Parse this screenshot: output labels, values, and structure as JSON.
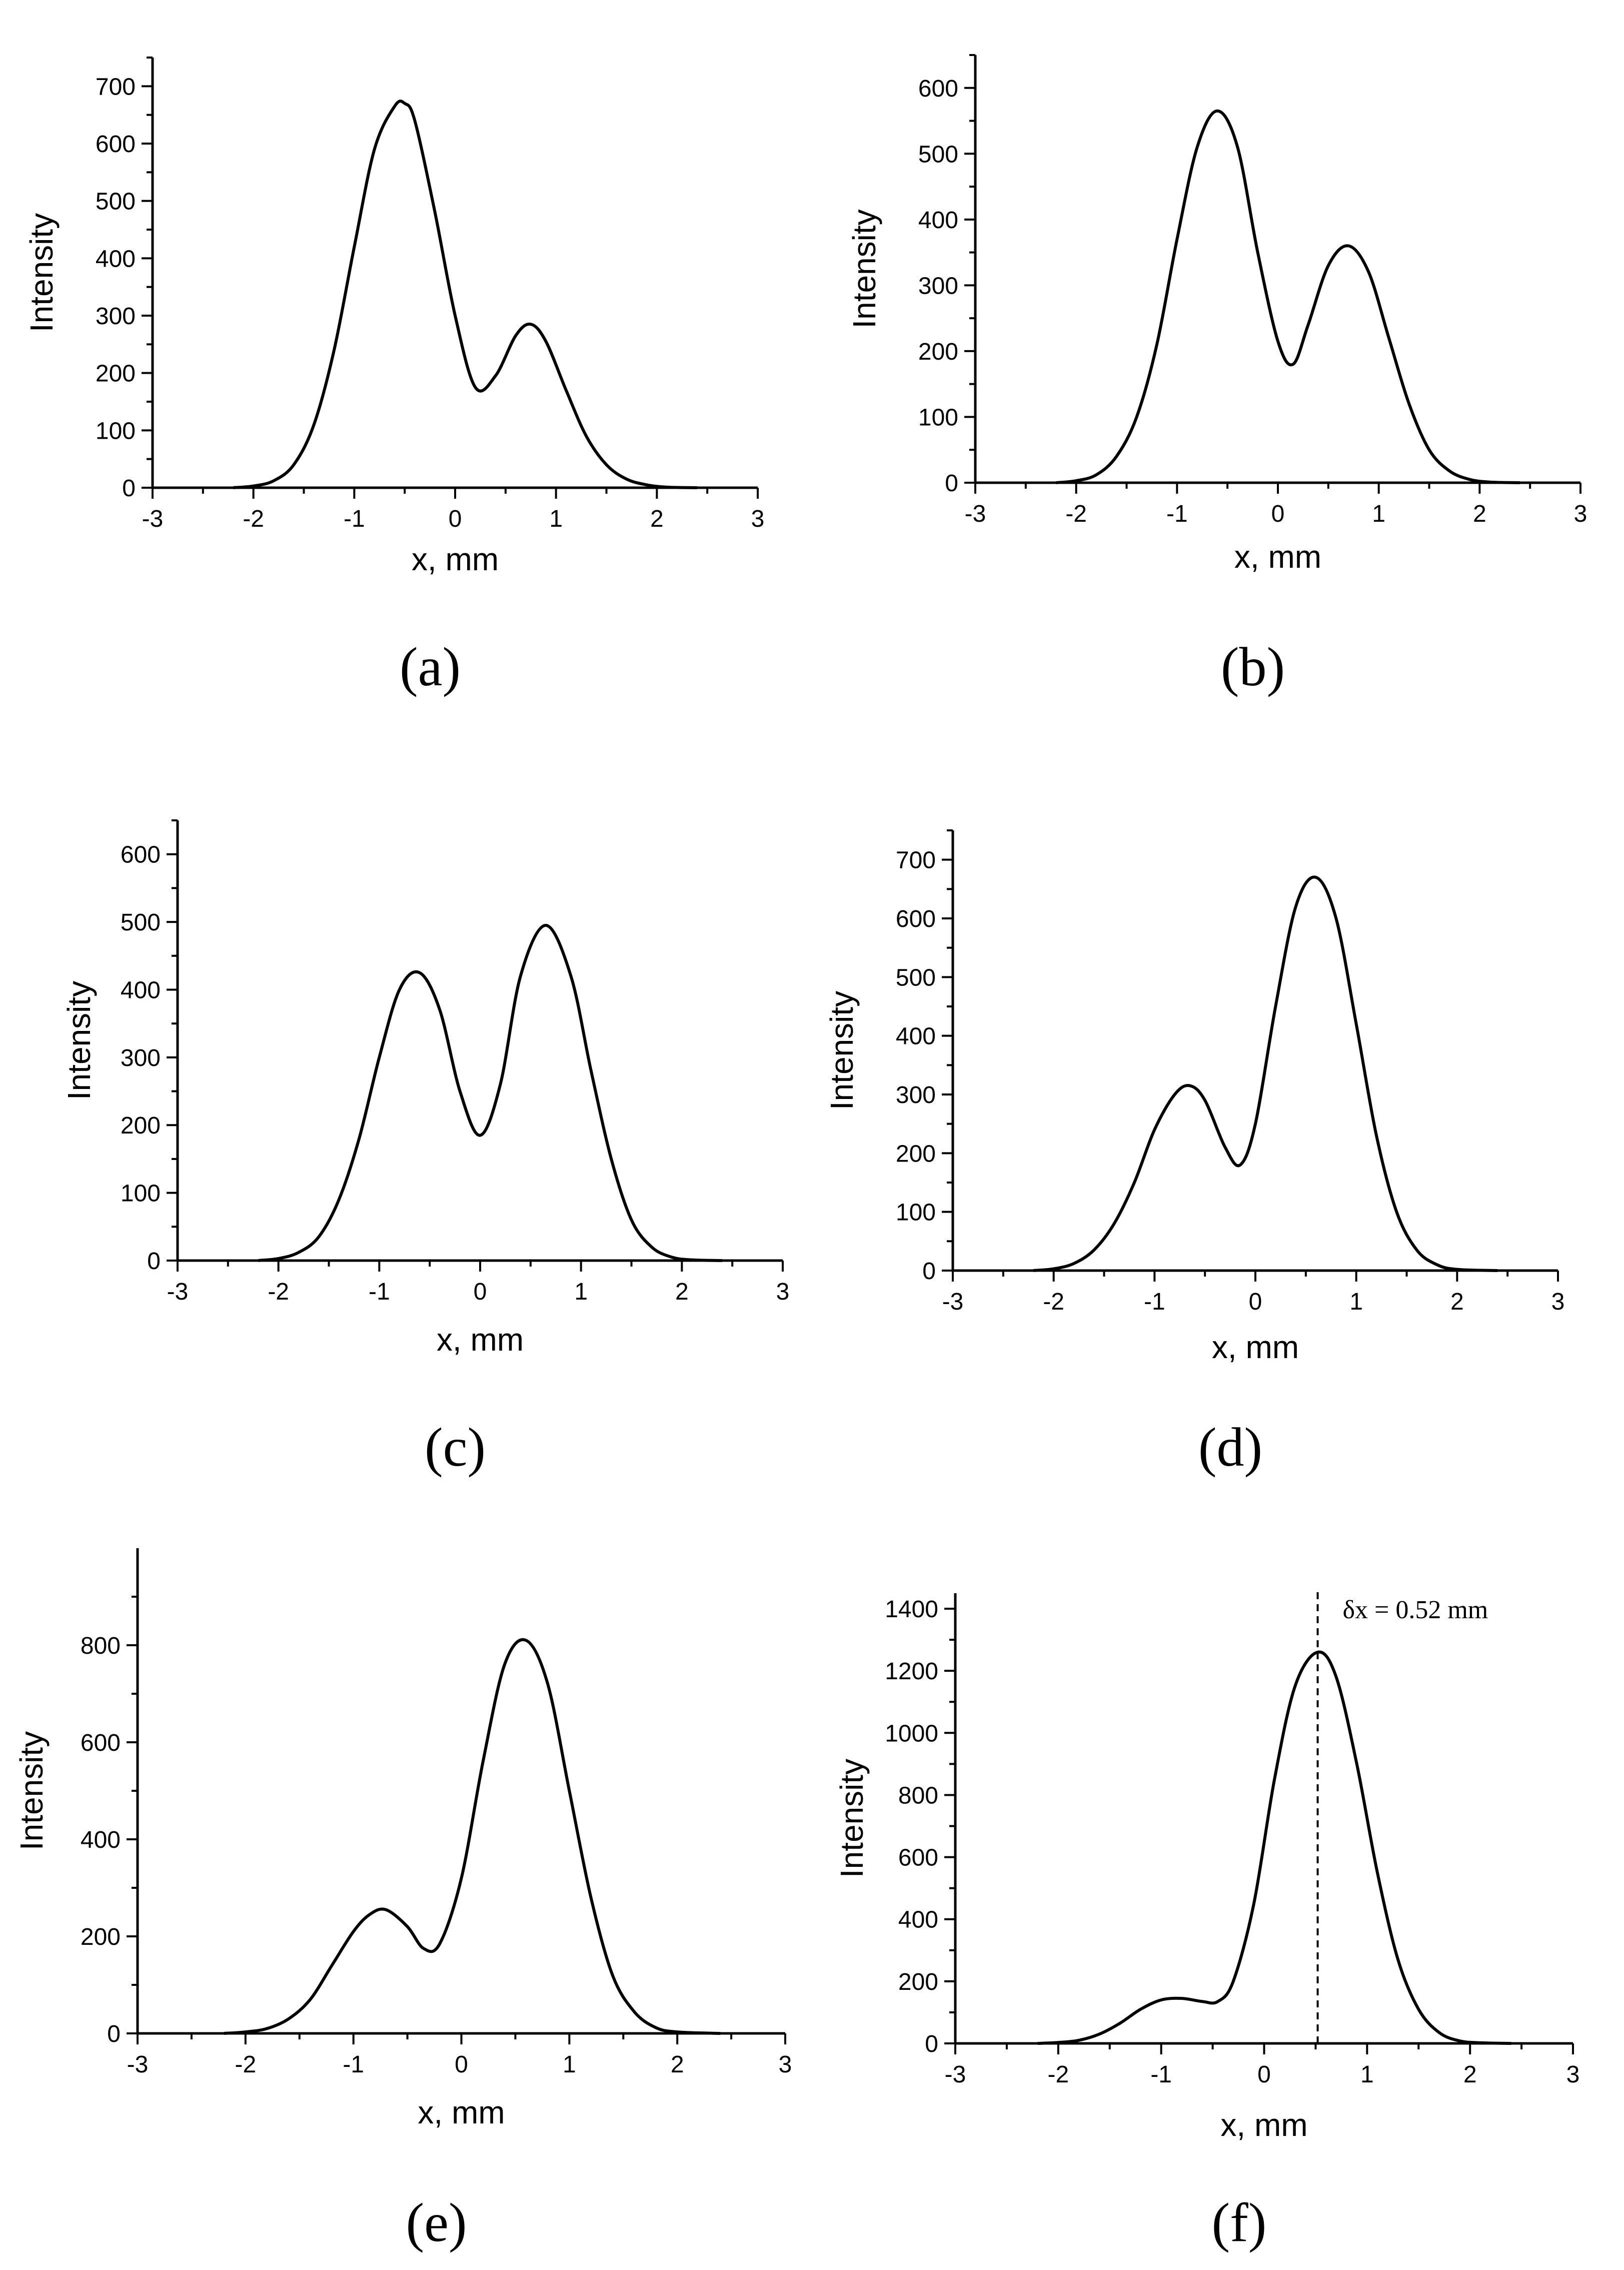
{
  "chart_data": [
    {
      "type": "line",
      "label": "(a)",
      "xlabel": "x, mm",
      "ylabel": "Intensity",
      "xlim": [
        -3,
        3
      ],
      "ylim": [
        0,
        750
      ],
      "xticks": [
        -3,
        -2,
        -1,
        0,
        1,
        2,
        3
      ],
      "yticks": [
        0,
        100,
        200,
        300,
        400,
        500,
        600,
        700
      ],
      "x": [
        -2.2,
        -2.0,
        -1.8,
        -1.6,
        -1.4,
        -1.2,
        -1.0,
        -0.8,
        -0.6,
        -0.5,
        -0.4,
        -0.2,
        0.0,
        0.2,
        0.4,
        0.6,
        0.75,
        0.9,
        1.1,
        1.3,
        1.5,
        1.7,
        1.9,
        2.1,
        2.4
      ],
      "y": [
        0,
        3,
        12,
        40,
        110,
        240,
        420,
        590,
        665,
        670,
        640,
        480,
        300,
        175,
        195,
        265,
        285,
        255,
        170,
        90,
        40,
        15,
        5,
        1,
        0
      ]
    },
    {
      "type": "line",
      "label": "(b)",
      "xlabel": "x, mm",
      "ylabel": "Intensity",
      "xlim": [
        -3,
        3
      ],
      "ylim": [
        0,
        650
      ],
      "xticks": [
        -3,
        -2,
        -1,
        0,
        1,
        2,
        3
      ],
      "yticks": [
        0,
        100,
        200,
        300,
        400,
        500,
        600
      ],
      "x": [
        -2.2,
        -2.0,
        -1.8,
        -1.6,
        -1.4,
        -1.2,
        -1.0,
        -0.8,
        -0.6,
        -0.4,
        -0.2,
        0.0,
        0.15,
        0.3,
        0.5,
        0.7,
        0.9,
        1.1,
        1.3,
        1.5,
        1.7,
        1.9,
        2.1,
        2.4
      ],
      "y": [
        0,
        3,
        12,
        40,
        100,
        210,
        370,
        510,
        565,
        510,
        350,
        215,
        180,
        240,
        330,
        360,
        320,
        220,
        120,
        50,
        18,
        5,
        1,
        0
      ]
    },
    {
      "type": "line",
      "label": "(c)",
      "xlabel": "x, mm",
      "ylabel": "Intensity",
      "xlim": [
        -3,
        3
      ],
      "ylim": [
        0,
        650
      ],
      "xticks": [
        -3,
        -2,
        -1,
        0,
        1,
        2,
        3
      ],
      "yticks": [
        0,
        100,
        200,
        300,
        400,
        500,
        600
      ],
      "x": [
        -2.2,
        -2.0,
        -1.8,
        -1.6,
        -1.4,
        -1.2,
        -1.0,
        -0.8,
        -0.6,
        -0.4,
        -0.2,
        0.0,
        0.2,
        0.4,
        0.65,
        0.9,
        1.1,
        1.3,
        1.5,
        1.7,
        1.9,
        2.1,
        2.4
      ],
      "y": [
        0,
        3,
        12,
        35,
        90,
        180,
        300,
        400,
        425,
        370,
        250,
        185,
        260,
        420,
        495,
        420,
        280,
        150,
        60,
        20,
        5,
        1,
        0
      ]
    },
    {
      "type": "line",
      "label": "(d)",
      "xlabel": "x, mm",
      "ylabel": "Intensity",
      "xlim": [
        -3,
        3
      ],
      "ylim": [
        0,
        750
      ],
      "xticks": [
        -3,
        -2,
        -1,
        0,
        1,
        2,
        3
      ],
      "yticks": [
        0,
        100,
        200,
        300,
        400,
        500,
        600,
        700
      ],
      "x": [
        -2.2,
        -2.0,
        -1.8,
        -1.6,
        -1.4,
        -1.2,
        -1.0,
        -0.8,
        -0.65,
        -0.5,
        -0.3,
        -0.15,
        0.0,
        0.2,
        0.4,
        0.6,
        0.8,
        1.0,
        1.2,
        1.4,
        1.6,
        1.8,
        2.0,
        2.4
      ],
      "y": [
        0,
        3,
        12,
        35,
        80,
        150,
        240,
        300,
        315,
        290,
        210,
        180,
        250,
        450,
        620,
        670,
        600,
        420,
        230,
        100,
        35,
        10,
        2,
        0
      ]
    },
    {
      "type": "line",
      "label": "(e)",
      "xlabel": "x, mm",
      "ylabel": "Intensity",
      "xlim": [
        -3,
        3
      ],
      "ylim": [
        0,
        1000
      ],
      "xticks": [
        -3,
        -2,
        -1,
        0,
        1,
        2,
        3
      ],
      "yticks": [
        0,
        200,
        400,
        600,
        800
      ],
      "x": [
        -2.2,
        -2.0,
        -1.8,
        -1.6,
        -1.4,
        -1.2,
        -1.0,
        -0.85,
        -0.7,
        -0.5,
        -0.35,
        -0.2,
        0.0,
        0.2,
        0.4,
        0.6,
        0.8,
        1.0,
        1.2,
        1.4,
        1.6,
        1.8,
        2.0,
        2.4
      ],
      "y": [
        0,
        3,
        10,
        30,
        70,
        140,
        210,
        245,
        255,
        220,
        175,
        185,
        320,
        560,
        760,
        810,
        720,
        500,
        280,
        120,
        45,
        12,
        3,
        0
      ]
    },
    {
      "type": "line",
      "label": "(f)",
      "xlabel": "x, mm",
      "ylabel": "Intensity",
      "xlim": [
        -3,
        3
      ],
      "ylim": [
        0,
        1450
      ],
      "xticks": [
        -3,
        -2,
        -1,
        0,
        1,
        2,
        3
      ],
      "yticks": [
        0,
        200,
        400,
        600,
        800,
        1000,
        1200,
        1400
      ],
      "x": [
        -2.2,
        -2.0,
        -1.8,
        -1.6,
        -1.4,
        -1.2,
        -1.0,
        -0.8,
        -0.6,
        -0.45,
        -0.3,
        -0.1,
        0.1,
        0.3,
        0.52,
        0.7,
        0.9,
        1.1,
        1.3,
        1.5,
        1.7,
        1.9,
        2.1,
        2.4
      ],
      "y": [
        0,
        3,
        10,
        30,
        65,
        110,
        140,
        145,
        135,
        135,
        200,
        450,
        850,
        1150,
        1260,
        1180,
        900,
        550,
        270,
        110,
        35,
        8,
        2,
        0
      ],
      "marker_x": 0.52,
      "annotation": "δx = 0.52 mm"
    }
  ]
}
